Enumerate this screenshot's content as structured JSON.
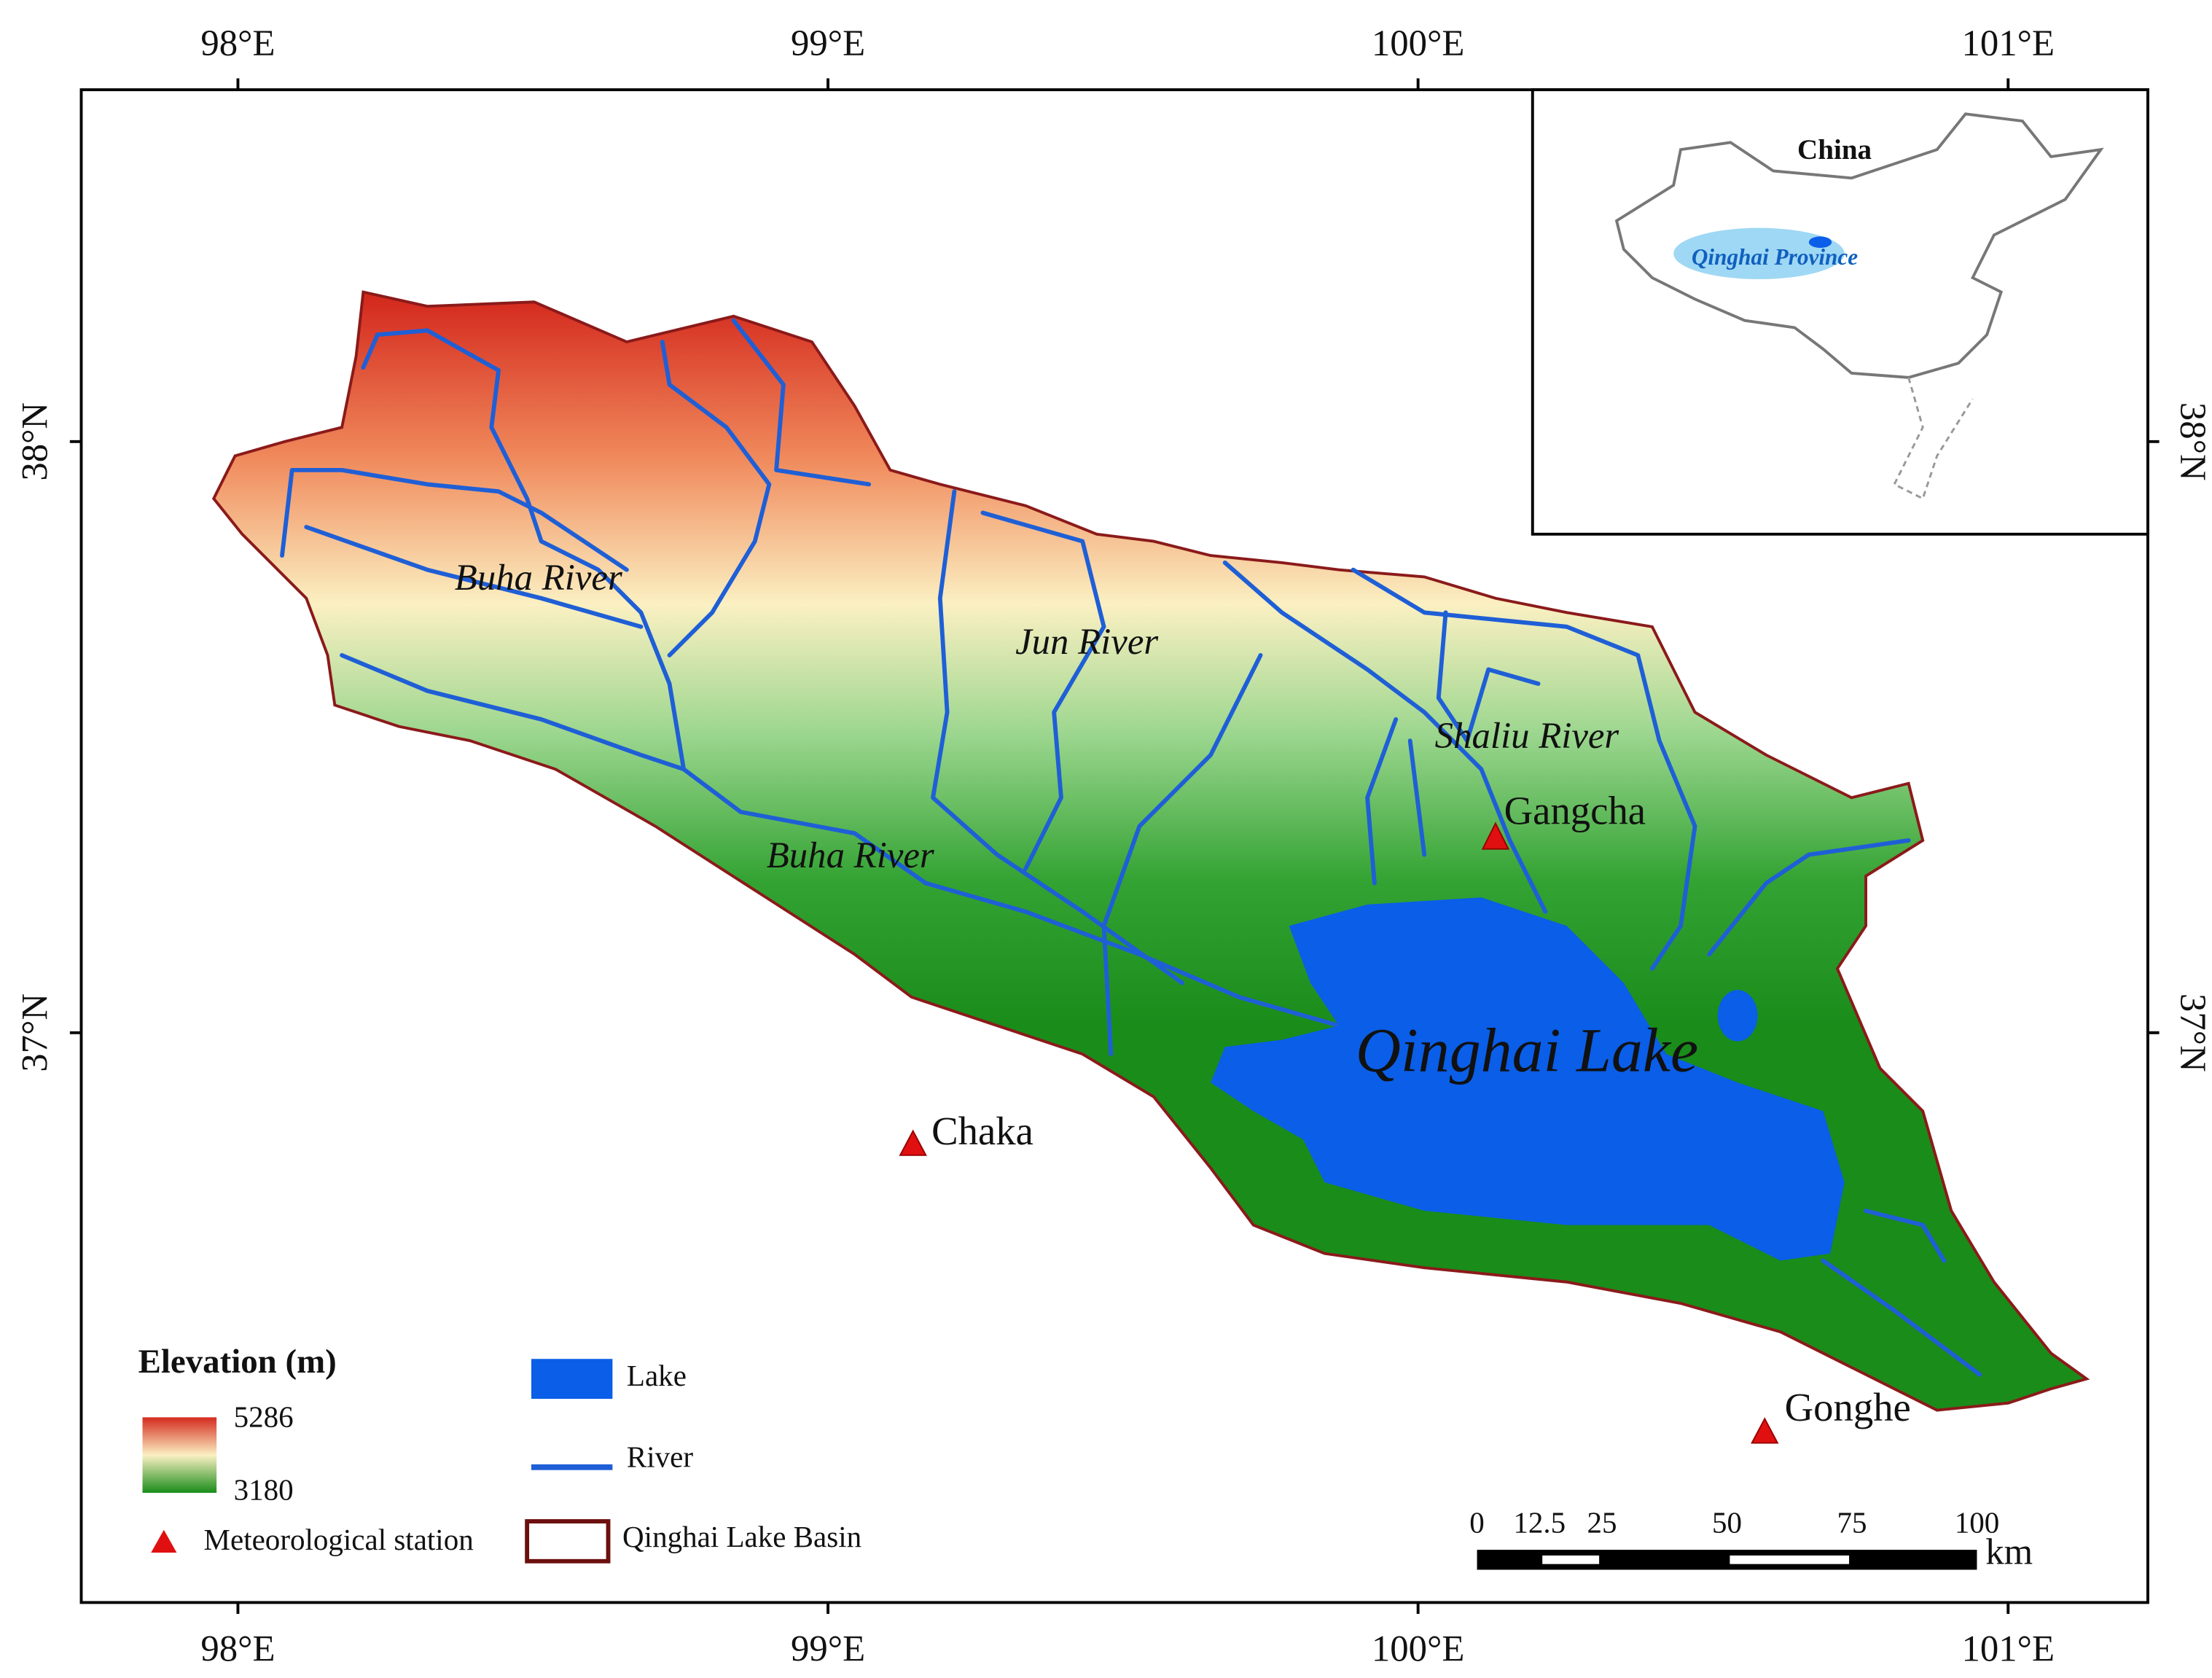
{
  "map": {
    "longitude_ticks": [
      {
        "value": 98,
        "label": "98°E"
      },
      {
        "value": 99,
        "label": "99°E"
      },
      {
        "value": 100,
        "label": "100°E"
      },
      {
        "value": 101,
        "label": "101°E"
      }
    ],
    "latitude_ticks": [
      {
        "value": 38,
        "label": "38°N"
      },
      {
        "value": 37,
        "label": "37°N"
      }
    ],
    "rivers": [
      "Buha River",
      "Jun River",
      "Shaliu River",
      "Buha River"
    ],
    "lake": "Qinghai Lake",
    "stations": [
      "Gangcha",
      "Chaka",
      "Gonghe"
    ]
  },
  "inset": {
    "country": "China",
    "province": "Qinghai Province"
  },
  "legend": {
    "elevation_title": "Elevation (m)",
    "elevation_max": 5286,
    "elevation_min": 3180,
    "lake": "Lake",
    "river": "River",
    "station": "Meteorological station",
    "basin": "Qinghai Lake Basin"
  },
  "scale_bar": {
    "ticks": [
      0,
      12.5,
      25,
      50,
      75,
      100
    ],
    "unit": "km"
  }
}
